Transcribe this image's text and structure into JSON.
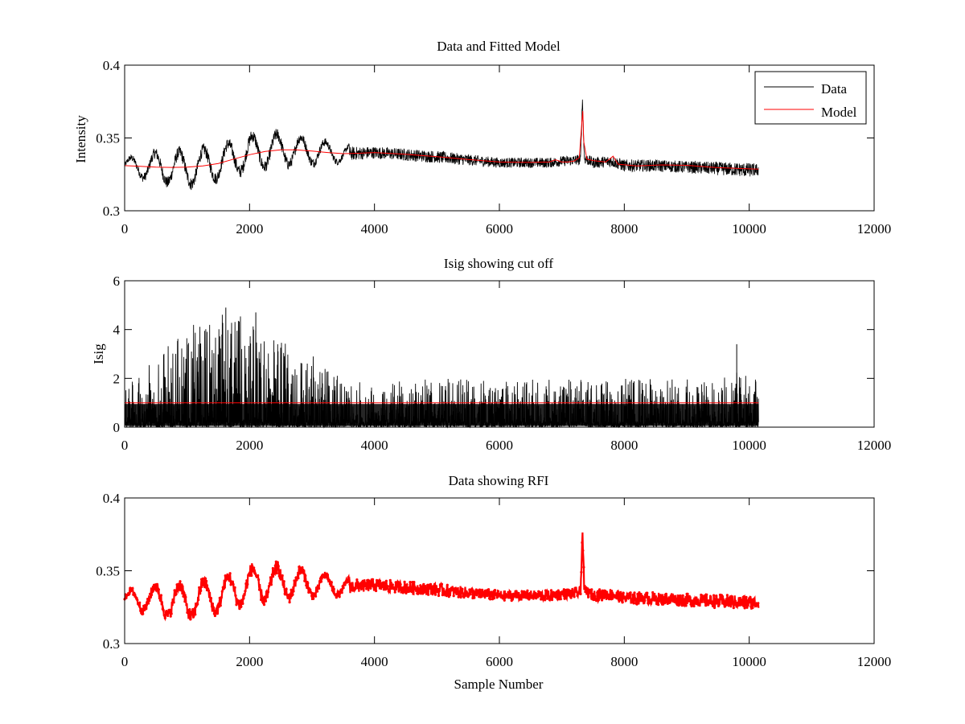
{
  "colors": {
    "background": "#ffffff",
    "axes": "#000000",
    "data": "#000000",
    "model": "#ff0000"
  },
  "chart_data": [
    {
      "type": "line",
      "title": "Data and Fitted Model",
      "xlabel": "",
      "ylabel": "Intensity",
      "xlim": [
        0,
        12000
      ],
      "ylim": [
        0.3,
        0.4
      ],
      "x_ticks": [
        0,
        2000,
        4000,
        6000,
        8000,
        10000,
        12000
      ],
      "y_ticks": [
        0.3,
        0.35,
        0.4
      ],
      "x_tick_labels": [
        "0",
        "2000",
        "4000",
        "6000",
        "8000",
        "10000",
        "12000"
      ],
      "y_tick_labels": [
        "0.3",
        "0.35",
        "0.4"
      ],
      "grid": false,
      "legend": {
        "placement": "top-right",
        "entries": [
          {
            "label": "Data",
            "color": "#000000"
          },
          {
            "label": "Model",
            "color": "#ff0000"
          }
        ]
      },
      "series": [
        {
          "name": "Data",
          "color": "#000000",
          "style": "noisy-line",
          "x_range": [
            0,
            10150
          ],
          "samples": 10150,
          "centerline": {
            "x": [
              0,
              500,
              1000,
              1500,
              2000,
              2500,
              3000,
              3500,
              4000,
              5000,
              6000,
              6800,
              7000,
              7300,
              7330,
              7360,
              7500,
              7800,
              8000,
              8500,
              9000,
              10000,
              10150
            ],
            "y": [
              0.331,
              0.33,
              0.329,
              0.333,
              0.34,
              0.342,
              0.341,
              0.339,
              0.34,
              0.337,
              0.333,
              0.333,
              0.334,
              0.335,
              0.377,
              0.336,
              0.333,
              0.334,
              0.331,
              0.331,
              0.33,
              0.328,
              0.328
            ]
          },
          "spread": {
            "x": [
              0,
              500,
              1000,
              1500,
              2000,
              2500,
              3000,
              3500,
              4000,
              5000,
              6000,
              7000,
              8000,
              9000,
              10000,
              10150
            ],
            "y": [
              0.006,
              0.013,
              0.015,
              0.014,
              0.015,
              0.014,
              0.011,
              0.007,
              0.006,
              0.006,
              0.005,
              0.005,
              0.006,
              0.006,
              0.007,
              0.006
            ]
          }
        },
        {
          "name": "Model",
          "color": "#ff0000",
          "style": "line",
          "x": [
            0,
            250,
            500,
            750,
            1000,
            1250,
            1500,
            1750,
            2000,
            2250,
            2500,
            2750,
            3000,
            3250,
            3500,
            3750,
            4000,
            4500,
            5000,
            5500,
            6000,
            6500,
            6800,
            6900,
            7000,
            7100,
            7200,
            7280,
            7320,
            7335,
            7350,
            7400,
            7500,
            7700,
            7780,
            7820,
            7900,
            8200,
            8600,
            9000,
            9500,
            10000,
            10150
          ],
          "y": [
            0.331,
            0.3305,
            0.33,
            0.3298,
            0.33,
            0.3308,
            0.3325,
            0.3355,
            0.3385,
            0.3408,
            0.3418,
            0.3418,
            0.341,
            0.34,
            0.3392,
            0.3395,
            0.34,
            0.3388,
            0.3372,
            0.3352,
            0.3335,
            0.3332,
            0.3335,
            0.335,
            0.3335,
            0.3335,
            0.3342,
            0.3365,
            0.3605,
            0.3685,
            0.3475,
            0.3355,
            0.3345,
            0.3335,
            0.336,
            0.3375,
            0.332,
            0.3308,
            0.3315,
            0.3312,
            0.3296,
            0.3288,
            0.3286
          ]
        }
      ]
    },
    {
      "type": "line",
      "title": "Isig showing cut off",
      "xlabel": "",
      "ylabel": "Isig",
      "xlim": [
        0,
        12000
      ],
      "ylim": [
        0,
        6
      ],
      "x_ticks": [
        0,
        2000,
        4000,
        6000,
        8000,
        10000,
        12000
      ],
      "y_ticks": [
        0,
        2,
        4,
        6
      ],
      "x_tick_labels": [
        "0",
        "2000",
        "4000",
        "6000",
        "8000",
        "10000",
        "12000"
      ],
      "y_tick_labels": [
        "0",
        "2",
        "4",
        "6"
      ],
      "grid": false,
      "series": [
        {
          "name": "Isig",
          "color": "#000000",
          "style": "noisy-spikes",
          "x_range": [
            0,
            10150
          ],
          "samples": 10150,
          "envelope": {
            "x": [
              0,
              500,
              1000,
              1500,
              2000,
              2500,
              3000,
              3500,
              4000,
              5000,
              6000,
              7000,
              8000,
              9000,
              9800,
              10150
            ],
            "y": [
              1.6,
              2.8,
              4.2,
              4.7,
              4.5,
              3.7,
              3.0,
              1.9,
              1.8,
              2.0,
              1.9,
              2.0,
              2.0,
              2.0,
              2.3,
              2.0
            ]
          },
          "notable_peaks": [
            {
              "x": 1620,
              "y": 4.9
            },
            {
              "x": 2100,
              "y": 4.7
            },
            {
              "x": 9800,
              "y": 3.4
            }
          ]
        },
        {
          "name": "Cut off",
          "color": "#ff0000",
          "style": "line",
          "x": [
            0,
            10150
          ],
          "y": [
            1.0,
            1.0
          ]
        }
      ]
    },
    {
      "type": "scatter",
      "title": "Data showing RFI",
      "xlabel": "Sample Number",
      "ylabel": "",
      "xlim": [
        0,
        12000
      ],
      "ylim": [
        0.3,
        0.4
      ],
      "x_ticks": [
        0,
        2000,
        4000,
        6000,
        8000,
        10000,
        12000
      ],
      "y_ticks": [
        0.3,
        0.35,
        0.4
      ],
      "x_tick_labels": [
        "0",
        "2000",
        "4000",
        "6000",
        "8000",
        "10000",
        "12000"
      ],
      "y_tick_labels": [
        "0.3",
        "0.35",
        "0.4"
      ],
      "grid": false,
      "series": [
        {
          "name": "RFI",
          "color": "#ff0000",
          "style": "dotted-dense",
          "x_range": [
            0,
            10150
          ],
          "samples": 10150,
          "centerline": {
            "x": [
              0,
              500,
              1000,
              1500,
              2000,
              2500,
              3000,
              3500,
              4000,
              5000,
              6000,
              6800,
              7000,
              7300,
              7330,
              7360,
              7500,
              7800,
              8000,
              8500,
              9000,
              10000,
              10150
            ],
            "y": [
              0.331,
              0.33,
              0.329,
              0.333,
              0.34,
              0.342,
              0.341,
              0.339,
              0.34,
              0.337,
              0.333,
              0.333,
              0.334,
              0.335,
              0.377,
              0.336,
              0.333,
              0.334,
              0.331,
              0.331,
              0.33,
              0.328,
              0.328
            ]
          },
          "spread": {
            "x": [
              0,
              500,
              1000,
              1500,
              2000,
              2500,
              3000,
              3500,
              4000,
              5000,
              6000,
              7000,
              8000,
              9000,
              10000,
              10150
            ],
            "y": [
              0.006,
              0.013,
              0.015,
              0.014,
              0.015,
              0.014,
              0.011,
              0.007,
              0.006,
              0.006,
              0.005,
              0.005,
              0.006,
              0.006,
              0.007,
              0.006
            ]
          }
        }
      ]
    }
  ]
}
